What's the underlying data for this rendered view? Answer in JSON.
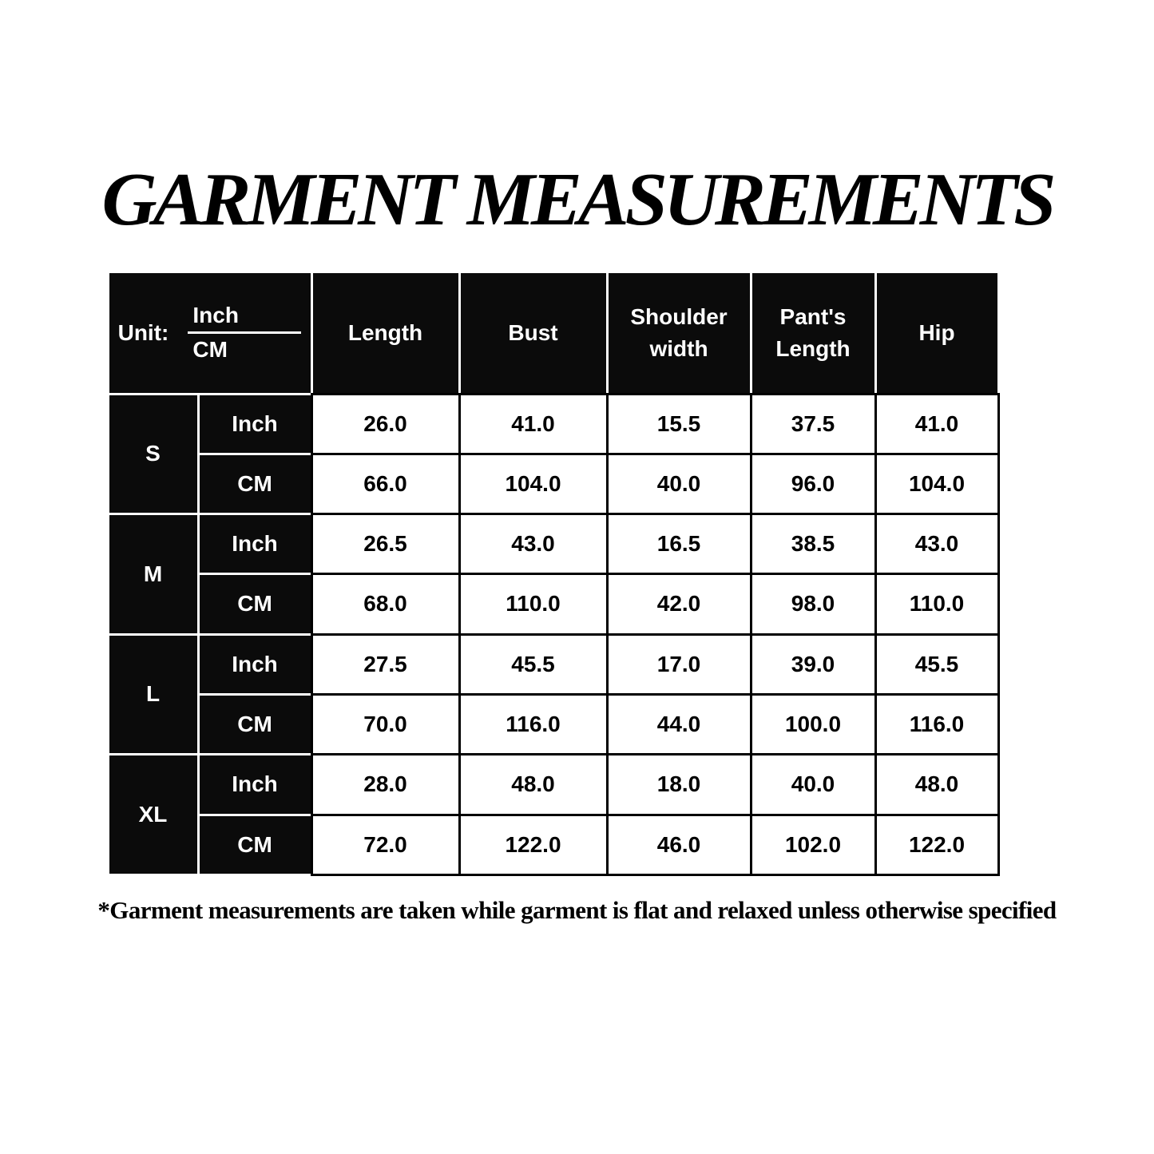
{
  "title": "GARMENT MEASUREMENTS",
  "footnote": "*Garment measurements are taken while garment is flat and relaxed unless otherwise specified",
  "table": {
    "unit_label": "Unit:",
    "unit_top": "Inch",
    "unit_bottom": "CM",
    "columns": [
      "Length",
      "Bust",
      "Shoulder width",
      "Pant's Length",
      "Hip"
    ],
    "rows": [
      {
        "size": "S",
        "inch_label": "Inch",
        "cm_label": "CM",
        "inch": [
          "26.0",
          "41.0",
          "15.5",
          "37.5",
          "41.0"
        ],
        "cm": [
          "66.0",
          "104.0",
          "40.0",
          "96.0",
          "104.0"
        ]
      },
      {
        "size": "M",
        "inch_label": "Inch",
        "cm_label": "CM",
        "inch": [
          "26.5",
          "43.0",
          "16.5",
          "38.5",
          "43.0"
        ],
        "cm": [
          "68.0",
          "110.0",
          "42.0",
          "98.0",
          "110.0"
        ]
      },
      {
        "size": "L",
        "inch_label": "Inch",
        "cm_label": "CM",
        "inch": [
          "27.5",
          "45.5",
          "17.0",
          "39.0",
          "45.5"
        ],
        "cm": [
          "70.0",
          "116.0",
          "44.0",
          "100.0",
          "116.0"
        ]
      },
      {
        "size": "XL",
        "inch_label": "Inch",
        "cm_label": "CM",
        "inch": [
          "28.0",
          "48.0",
          "18.0",
          "40.0",
          "48.0"
        ],
        "cm": [
          "72.0",
          "122.0",
          "46.0",
          "102.0",
          "122.0"
        ]
      }
    ]
  },
  "colors": {
    "header_bg": "#0b0b0b",
    "header_text": "#ffffff",
    "cell_bg": "#ffffff",
    "cell_text": "#000000"
  }
}
